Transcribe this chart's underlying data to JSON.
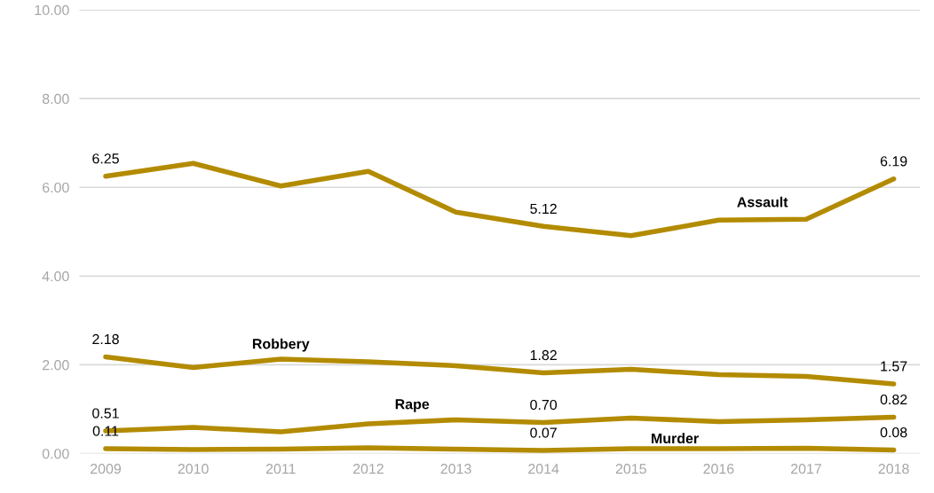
{
  "chart_data": {
    "type": "line",
    "categories": [
      "2009",
      "2010",
      "2011",
      "2012",
      "2013",
      "2014",
      "2015",
      "2016",
      "2017",
      "2018"
    ],
    "series": [
      {
        "name": "Assault",
        "color": "#b38b00",
        "values": [
          6.25,
          6.54,
          6.03,
          6.36,
          5.44,
          5.12,
          4.91,
          5.26,
          5.28,
          6.19
        ],
        "value_labels": [
          "6.25",
          null,
          null,
          null,
          null,
          "5.12",
          null,
          null,
          null,
          "6.19"
        ]
      },
      {
        "name": "Robbery",
        "color": "#b38b00",
        "values": [
          2.18,
          1.94,
          2.13,
          2.07,
          1.98,
          1.82,
          1.9,
          1.78,
          1.74,
          1.57
        ],
        "value_labels": [
          "2.18",
          null,
          null,
          null,
          null,
          "1.82",
          null,
          null,
          null,
          "1.57"
        ]
      },
      {
        "name": "Rape",
        "color": "#b38b00",
        "values": [
          0.51,
          0.59,
          0.49,
          0.67,
          0.76,
          0.7,
          0.8,
          0.72,
          0.76,
          0.82
        ],
        "value_labels": [
          "0.51",
          null,
          null,
          null,
          null,
          "0.70",
          null,
          null,
          null,
          "0.82"
        ]
      },
      {
        "name": "Murder",
        "color": "#b38b00",
        "values": [
          0.11,
          0.09,
          0.1,
          0.13,
          0.1,
          0.07,
          0.11,
          0.11,
          0.12,
          0.08
        ],
        "value_labels": [
          "0.11",
          null,
          null,
          null,
          null,
          "0.07",
          null,
          null,
          null,
          "0.08"
        ]
      }
    ],
    "ylim": [
      0,
      10
    ],
    "yticks": [
      {
        "value": 0,
        "label": "0.00"
      },
      {
        "value": 2,
        "label": "2.00"
      },
      {
        "value": 4,
        "label": "4.00"
      },
      {
        "value": 6,
        "label": "6.00"
      },
      {
        "value": 8,
        "label": "8.00"
      },
      {
        "value": 10,
        "label": "10.00"
      }
    ],
    "grid": "y",
    "legend": false,
    "marker": "none",
    "line_style": "solid"
  }
}
